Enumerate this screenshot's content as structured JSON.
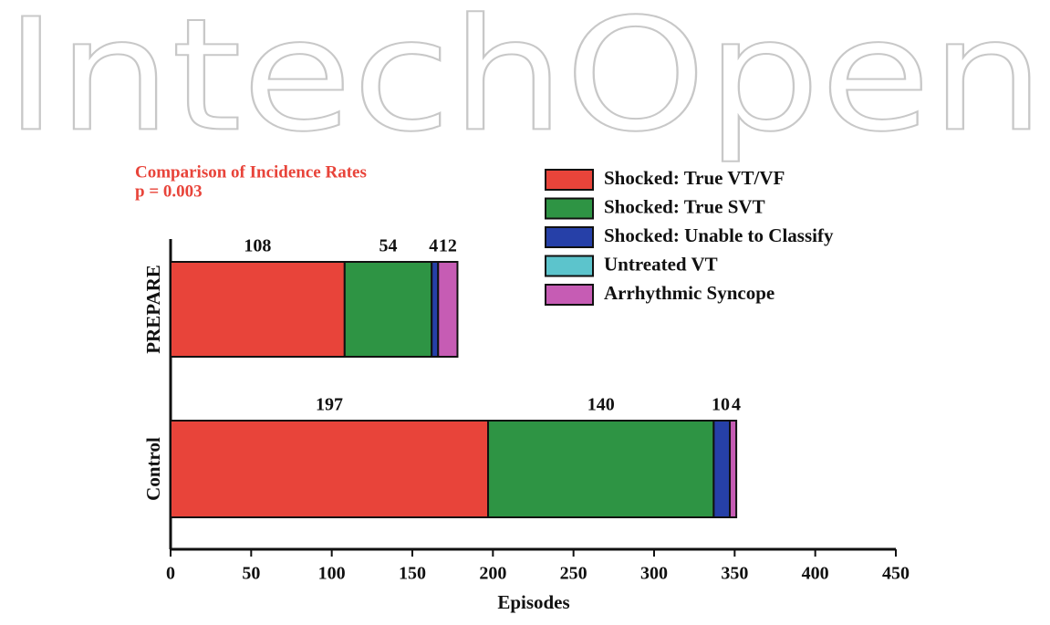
{
  "chart_data": {
    "type": "stacked-barh",
    "watermark": "IntechOpen",
    "title": "Comparison of Incidence Rates",
    "subtitle": "p = 0.003",
    "xlabel": "Episodes",
    "categories": [
      "PREPARE",
      "Control"
    ],
    "series": [
      {
        "name": "Shocked: True VT/VF",
        "color": "#e8443a",
        "values": [
          108,
          197
        ]
      },
      {
        "name": "Shocked: True SVT",
        "color": "#2e9444",
        "values": [
          54,
          140
        ]
      },
      {
        "name": "Shocked: Unable to Classify",
        "color": "#2640a8",
        "values": [
          4,
          10
        ]
      },
      {
        "name": "Untreated VT",
        "color": "#5cc4cc",
        "values": [
          null,
          null
        ]
      },
      {
        "name": "Arrhythmic Syncope",
        "color": "#c65cb4",
        "values": [
          12,
          4
        ]
      }
    ],
    "xlim": [
      0,
      450
    ],
    "xticks": [
      0,
      50,
      100,
      150,
      200,
      250,
      300,
      350,
      400,
      450
    ],
    "legend": "upper right"
  }
}
